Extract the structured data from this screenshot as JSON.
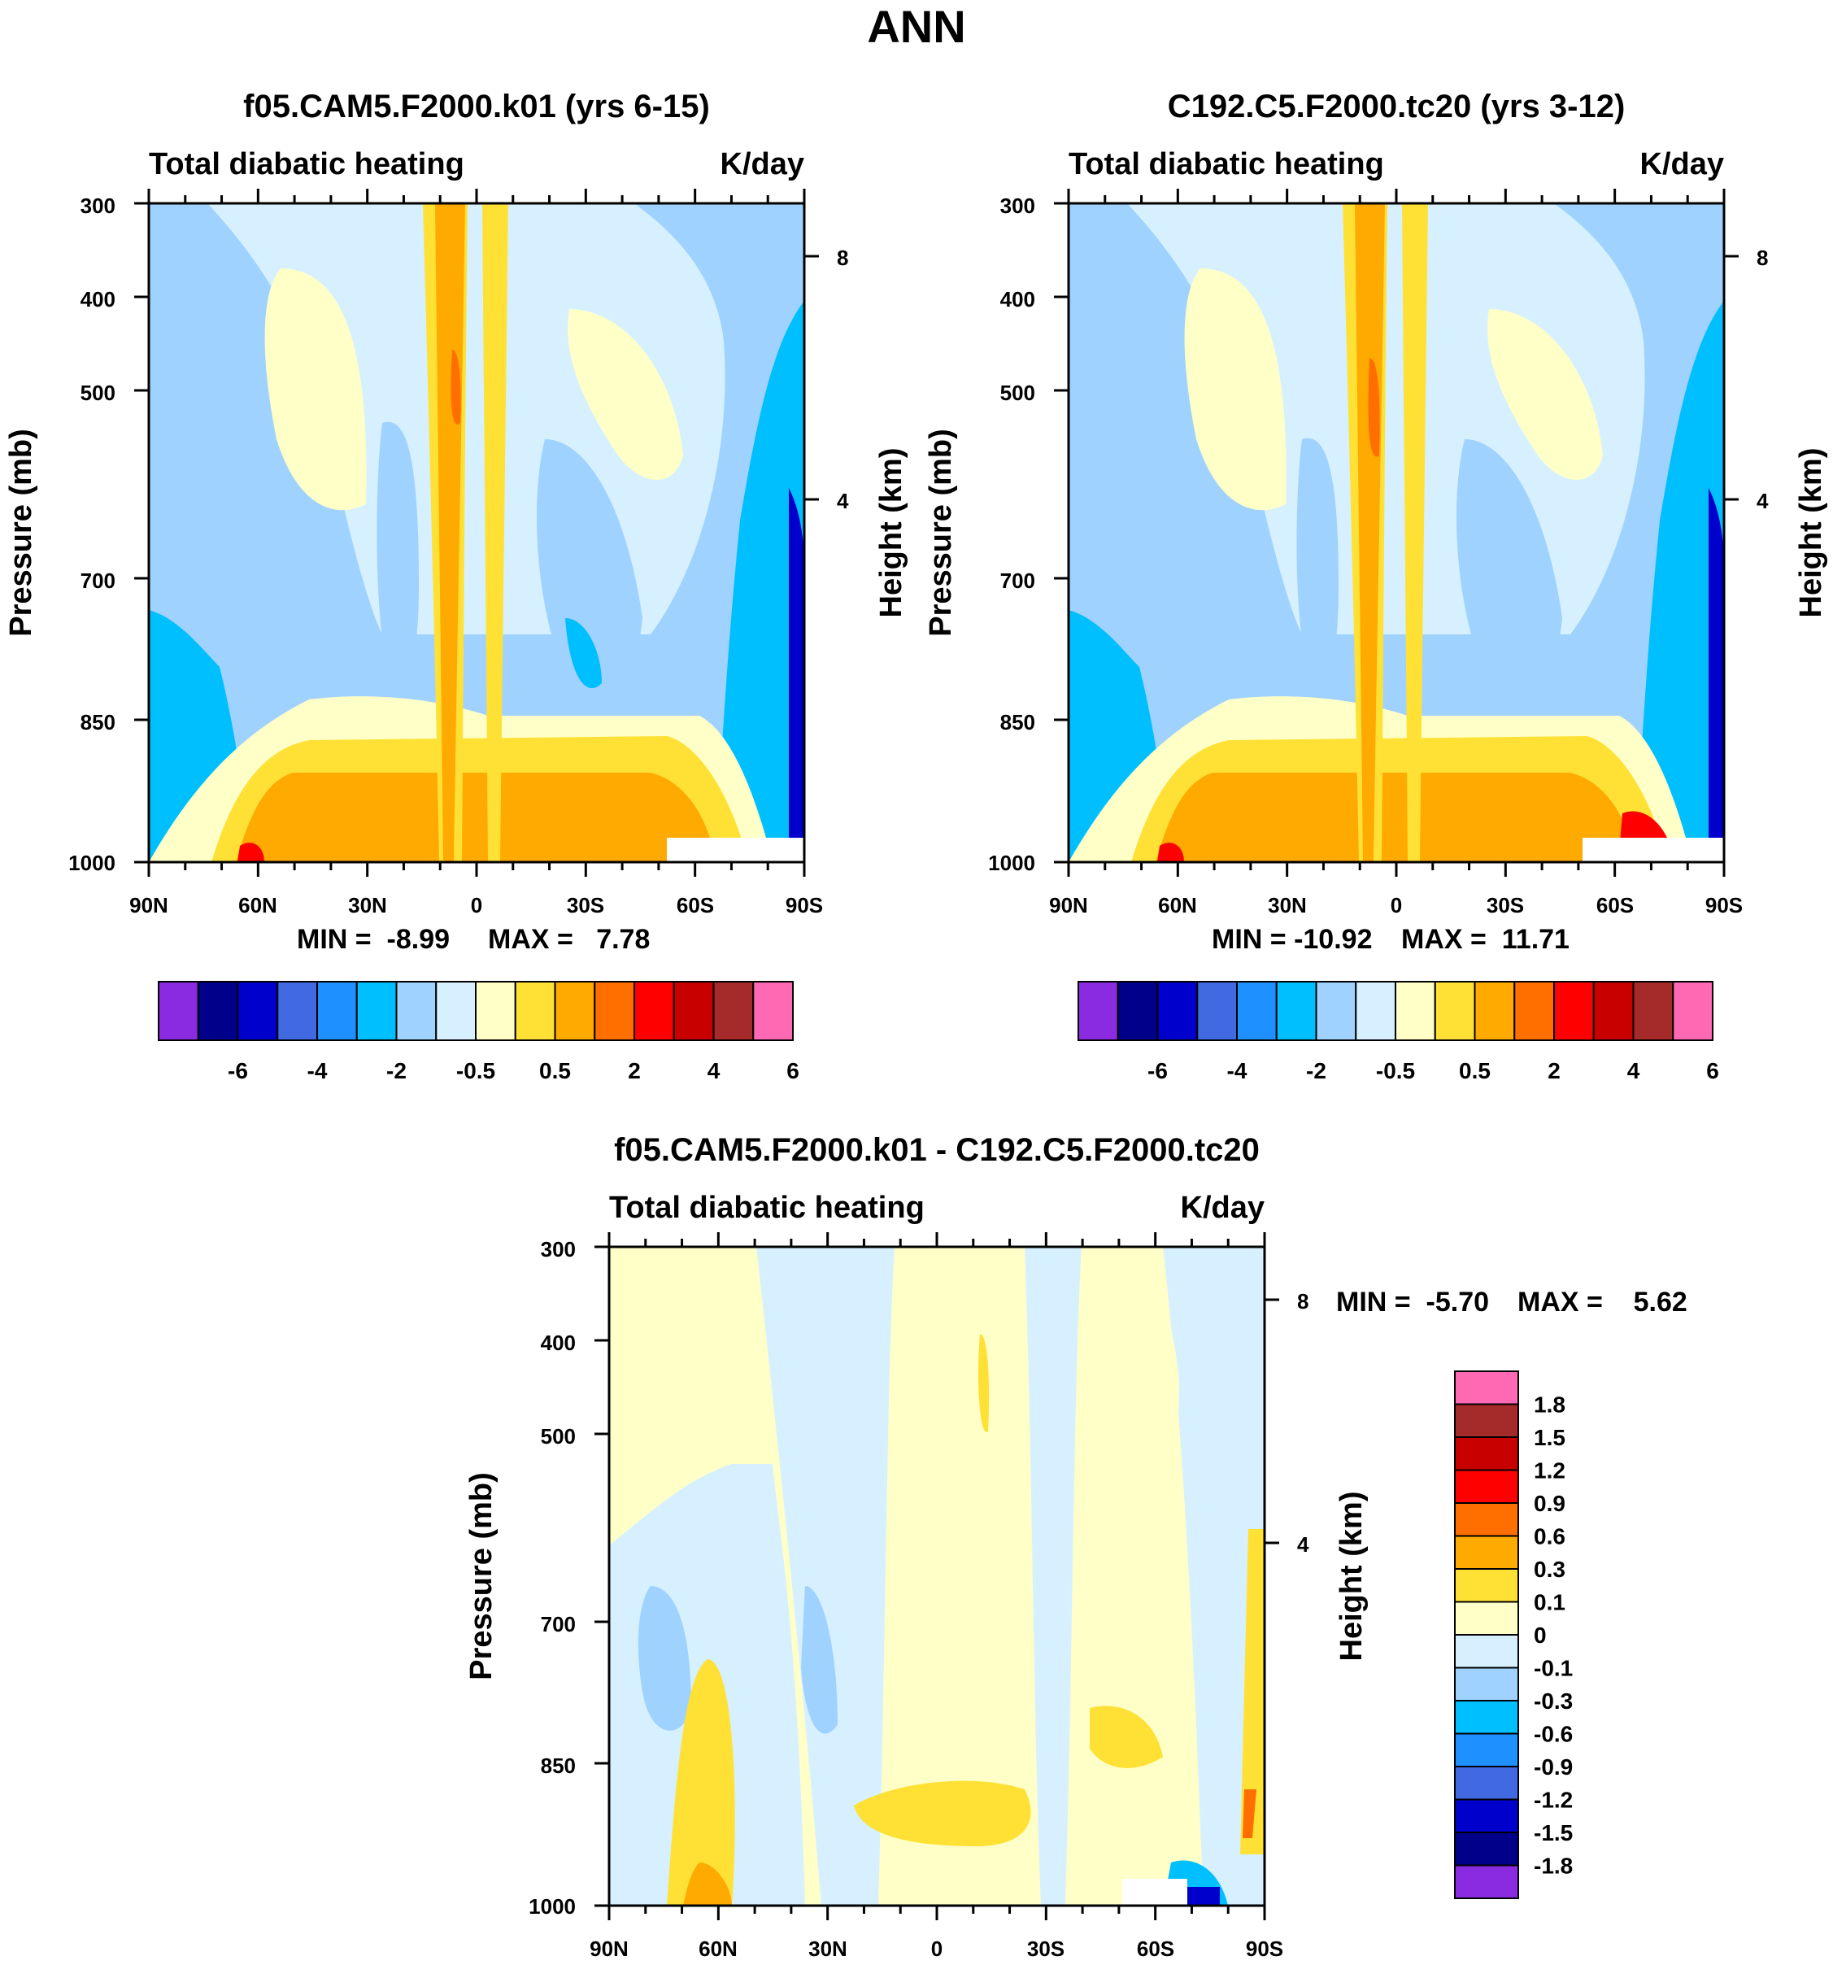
{
  "figure_title": "ANN",
  "chart_data": [
    {
      "type": "contour",
      "title": "f05.CAM5.F2000.k01 (yrs 6-15)",
      "left_string": "Total diabatic heating",
      "right_string": "K/day",
      "ylabel": "Pressure (mb)",
      "y2label": "Height (km)",
      "xticks": [
        "90N",
        "60N",
        "30N",
        "0",
        "30S",
        "60S",
        "90S"
      ],
      "yticks": [
        "300",
        "400",
        "500",
        "700",
        "850",
        "1000"
      ],
      "y2ticks": [
        "8",
        "4"
      ],
      "min_text": "MIN =  -8.99",
      "max_text": "MAX =   7.78",
      "min": -8.99,
      "max": 7.78,
      "colorbar_labels": [
        "-6",
        "-4",
        "-2",
        "-0.5",
        "0.5",
        "2",
        "4",
        "6"
      ]
    },
    {
      "type": "contour",
      "title": "C192.C5.F2000.tc20 (yrs 3-12)",
      "left_string": "Total diabatic heating",
      "right_string": "K/day",
      "ylabel": "Pressure (mb)",
      "y2label": "Height (km)",
      "xticks": [
        "90N",
        "60N",
        "30N",
        "0",
        "30S",
        "60S",
        "90S"
      ],
      "yticks": [
        "300",
        "400",
        "500",
        "700",
        "850",
        "1000"
      ],
      "y2ticks": [
        "8",
        "4"
      ],
      "min_text": "MIN = -10.92",
      "max_text": "MAX =  11.71",
      "min": -10.92,
      "max": 11.71,
      "colorbar_labels": [
        "-6",
        "-4",
        "-2",
        "-0.5",
        "0.5",
        "2",
        "4",
        "6"
      ]
    },
    {
      "type": "contour",
      "title": "f05.CAM5.F2000.k01 - C192.C5.F2000.tc20",
      "left_string": "Total diabatic heating",
      "right_string": "K/day",
      "ylabel": "Pressure (mb)",
      "y2label": "Height (km)",
      "xticks": [
        "90N",
        "60N",
        "30N",
        "0",
        "30S",
        "60S",
        "90S"
      ],
      "yticks": [
        "300",
        "400",
        "500",
        "700",
        "850",
        "1000"
      ],
      "y2ticks": [
        "8",
        "4"
      ],
      "min_text": "MIN =  -5.70",
      "max_text": "MAX =    5.62",
      "min": -5.7,
      "max": 5.62,
      "colorbar_labels": [
        "1.8",
        "1.5",
        "1.2",
        "0.9",
        "0.6",
        "0.3",
        "0.1",
        "0",
        "-0.1",
        "-0.3",
        "-0.6",
        "-0.9",
        "-1.2",
        "-1.5",
        "-1.8"
      ]
    }
  ],
  "colors": {
    "main_scale": [
      "#8a2be2",
      "#00008b",
      "#0000cd",
      "#4169e1",
      "#1e90ff",
      "#00bfff",
      "#a0d2ff",
      "#d6f0ff",
      "#ffffc8",
      "#ffe135",
      "#ffaa00",
      "#ff6f00",
      "#ff0000",
      "#c80000",
      "#a52a2a",
      "#ff69b4"
    ],
    "diff_scale": [
      "#ff69b4",
      "#a52a2a",
      "#c80000",
      "#ff0000",
      "#ff6f00",
      "#ffaa00",
      "#ffe135",
      "#ffffc8",
      "#d6f0ff",
      "#a0d2ff",
      "#00bfff",
      "#1e90ff",
      "#4169e1",
      "#0000cd",
      "#00008b",
      "#8a2be2"
    ]
  }
}
